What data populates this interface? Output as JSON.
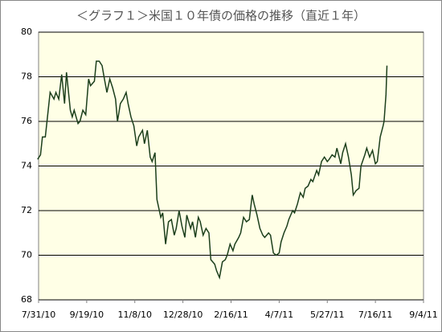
{
  "chart_data": {
    "type": "line",
    "title": "＜グラフ１＞米国１０年債の価格の推移（直近１年）",
    "x": [
      "7/30/10",
      "8/2/10",
      "8/4/10",
      "8/7/10",
      "8/10/10",
      "8/12/10",
      "8/16/10",
      "8/18/10",
      "8/21/10",
      "8/24/10",
      "8/27/10",
      "8/29/10",
      "9/2/10",
      "9/4/10",
      "9/6/10",
      "9/10/10",
      "9/12/10",
      "9/15/10",
      "9/18/10",
      "9/21/10",
      "9/23/10",
      "9/27/10",
      "9/29/10",
      "10/2/10",
      "10/5/10",
      "10/7/10",
      "10/10/10",
      "10/13/10",
      "10/16/10",
      "10/19/10",
      "10/21/10",
      "10/24/10",
      "10/27/10",
      "10/30/10",
      "11/1/10",
      "11/4/10",
      "11/7/10",
      "11/10/10",
      "11/12/10",
      "11/16/10",
      "11/18/10",
      "11/21/10",
      "11/24/10",
      "11/26/10",
      "11/29/10",
      "12/1/10",
      "12/5/10",
      "12/7/10",
      "12/10/10",
      "12/13/10",
      "12/16/10",
      "12/19/10",
      "12/21/10",
      "12/24/10",
      "12/27/10",
      "12/30/10",
      "1/1/11",
      "1/5/11",
      "1/7/11",
      "1/10/11",
      "1/13/11",
      "1/15/11",
      "1/18/11",
      "1/21/11",
      "1/24/11",
      "1/26/11",
      "1/30/11",
      "2/1/11",
      "2/4/11",
      "2/7/11",
      "2/10/11",
      "2/12/11",
      "2/15/11",
      "2/18/11",
      "2/20/11",
      "2/24/11",
      "2/26/11",
      "3/1/11",
      "3/4/11",
      "3/7/11",
      "3/10/11",
      "3/12/11",
      "3/15/11",
      "3/18/11",
      "3/21/11",
      "3/23/11",
      "3/27/11",
      "3/29/11",
      "4/1/11",
      "4/4/11",
      "4/7/11",
      "4/9/11",
      "4/12/11",
      "4/15/11",
      "4/17/11",
      "4/21/11",
      "4/23/11",
      "4/26/11",
      "4/29/11",
      "5/2/11",
      "5/4/11",
      "5/7/11",
      "5/10/11",
      "5/12/11",
      "5/16/11",
      "5/18/11",
      "5/21/11",
      "5/24/11",
      "5/27/11",
      "5/29/11",
      "6/1/11",
      "6/4/11",
      "6/6/11",
      "6/10/11",
      "6/12/11",
      "6/15/11",
      "6/18/11",
      "6/21/11",
      "6/23/11",
      "6/26/11",
      "6/29/11",
      "7/1/11",
      "7/5/11",
      "7/7/11",
      "7/10/11",
      "7/13/11",
      "7/16/11",
      "7/18/11",
      "7/21/11",
      "7/24/11",
      "7/25/11",
      "7/27/11",
      "7/28/11"
    ],
    "values": [
      74.3,
      74.5,
      75.3,
      75.3,
      76.5,
      77.3,
      77.0,
      77.3,
      77.0,
      78.1,
      76.8,
      78.2,
      76.5,
      76.2,
      76.5,
      75.9,
      76.0,
      76.5,
      76.3,
      77.9,
      77.6,
      77.8,
      78.7,
      78.7,
      78.5,
      78.0,
      77.3,
      77.9,
      77.5,
      77.0,
      76.0,
      76.8,
      77.0,
      77.3,
      76.8,
      76.2,
      75.8,
      74.9,
      75.3,
      75.6,
      75.0,
      75.6,
      74.4,
      74.2,
      74.6,
      72.5,
      71.7,
      71.9,
      70.5,
      71.5,
      71.6,
      70.9,
      71.2,
      72.0,
      71.3,
      70.8,
      71.8,
      71.2,
      71.5,
      70.8,
      71.7,
      71.5,
      70.9,
      71.2,
      71.0,
      69.8,
      69.6,
      69.3,
      69.0,
      69.7,
      69.8,
      70.0,
      70.5,
      70.2,
      70.5,
      70.8,
      71.0,
      71.7,
      71.5,
      71.6,
      72.7,
      72.3,
      71.8,
      71.2,
      70.9,
      70.8,
      71.0,
      70.9,
      70.1,
      70.0,
      70.1,
      70.6,
      71.0,
      71.3,
      71.6,
      72.0,
      71.9,
      72.3,
      72.8,
      72.6,
      73.0,
      73.1,
      73.4,
      73.3,
      73.8,
      73.6,
      74.2,
      74.4,
      74.2,
      74.3,
      74.5,
      74.4,
      74.8,
      74.1,
      74.6,
      75.0,
      74.4,
      73.6,
      72.7,
      72.9,
      73.0,
      74.0,
      74.5,
      74.8,
      74.4,
      74.7,
      74.1,
      74.2,
      75.3,
      75.8,
      76.0,
      77.2,
      78.5
    ],
    "color": "#1c3f1c",
    "xlim": [
      "7/31/10",
      "9/4/11"
    ],
    "xticks": [
      "7/31/10",
      "9/19/10",
      "11/8/10",
      "12/28/10",
      "2/16/11",
      "4/7/11",
      "5/27/11",
      "7/16/11",
      "9/4/11"
    ],
    "ylim": [
      68,
      80
    ],
    "yticks": [
      68,
      70,
      72,
      74,
      76,
      78,
      80
    ],
    "grid": true
  }
}
